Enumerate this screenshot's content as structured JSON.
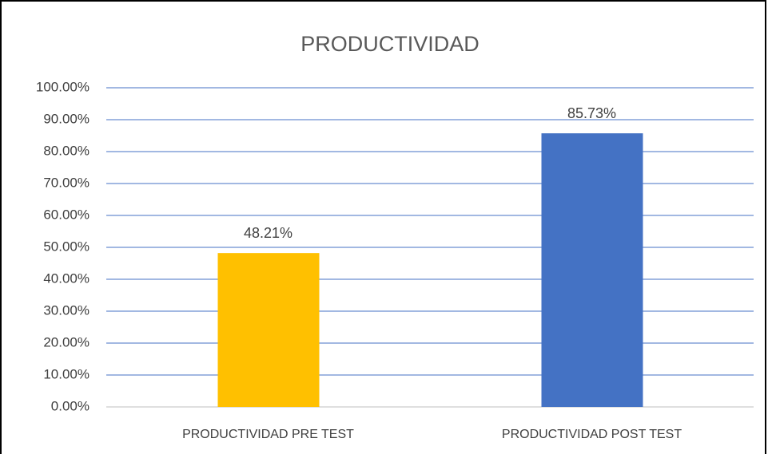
{
  "chart_data": {
    "type": "bar",
    "title": "PRODUCTIVIDAD",
    "categories": [
      "PRODUCTIVIDAD PRE TEST",
      "PRODUCTIVIDAD POST TEST"
    ],
    "values": [
      48.21,
      85.73
    ],
    "value_labels": [
      "48.21%",
      "85.73%"
    ],
    "colors": [
      "#ffc000",
      "#4472c4"
    ],
    "ylim": [
      0,
      100
    ],
    "yticks": [
      {
        "value": 0,
        "label": "0.00%"
      },
      {
        "value": 10,
        "label": "10.00%"
      },
      {
        "value": 20,
        "label": "20.00%"
      },
      {
        "value": 30,
        "label": "30.00%"
      },
      {
        "value": 40,
        "label": "40.00%"
      },
      {
        "value": 50,
        "label": "50.00%"
      },
      {
        "value": 60,
        "label": "60.00%"
      },
      {
        "value": 70,
        "label": "70.00%"
      },
      {
        "value": 80,
        "label": "80.00%"
      },
      {
        "value": 90,
        "label": "90.00%"
      },
      {
        "value": 100,
        "label": "100.00%"
      }
    ],
    "grid": true
  }
}
